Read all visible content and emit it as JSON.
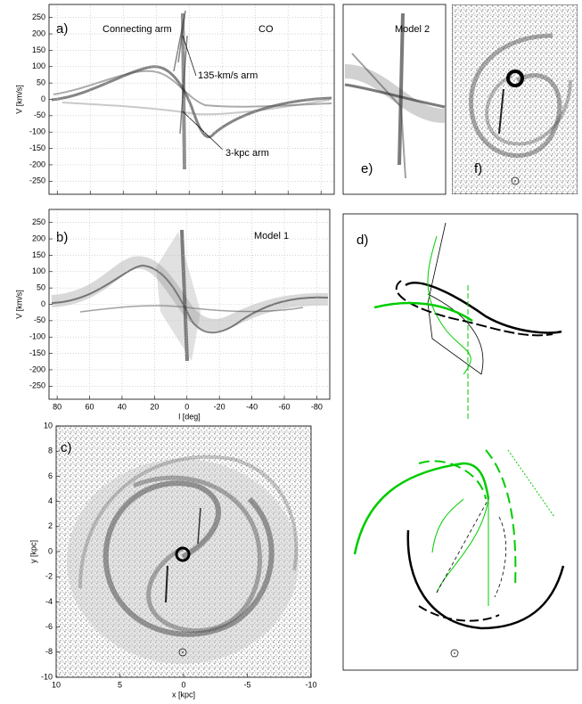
{
  "figure": {
    "panels": {
      "a": {
        "label": "a)",
        "title": "CO",
        "annotations": [
          "Connecting arm",
          "135-km/s arm",
          "3-kpc arm"
        ],
        "ylabel": "V [km/s]",
        "xlim": [
          85,
          -88
        ],
        "xticks": [
          80,
          60,
          40,
          20,
          0,
          -20,
          -40,
          -60,
          -80
        ],
        "ylim": [
          -290,
          290
        ],
        "yticks": [
          -250,
          -200,
          -150,
          -100,
          -50,
          0,
          50,
          100,
          150,
          200,
          250
        ],
        "grid": true
      },
      "b": {
        "label": "b)",
        "title": "Model 1",
        "xlabel": "l [deg]",
        "ylabel": "V [km/s]",
        "xlim": [
          85,
          -88
        ],
        "xticks": [
          80,
          60,
          40,
          20,
          0,
          -20,
          -40,
          -60,
          -80
        ],
        "ylim": [
          -290,
          290
        ],
        "yticks": [
          -250,
          -200,
          -150,
          -100,
          -50,
          0,
          50,
          100,
          150,
          200,
          250
        ],
        "grid": true
      },
      "c": {
        "label": "c)",
        "xlabel": "x [kpc]",
        "ylabel": "y [kpc]",
        "xlim": [
          10,
          -10
        ],
        "xticks": [
          10,
          5,
          0,
          -5,
          -10
        ],
        "ylim": [
          -10,
          10
        ],
        "yticks": [
          -10,
          -8,
          -6,
          -4,
          -2,
          0,
          2,
          4,
          6,
          8,
          10
        ],
        "grid": false
      },
      "d": {
        "label": "d)"
      },
      "e": {
        "label": "e)",
        "title": "Model 2"
      },
      "f": {
        "label": "f)"
      }
    }
  }
}
